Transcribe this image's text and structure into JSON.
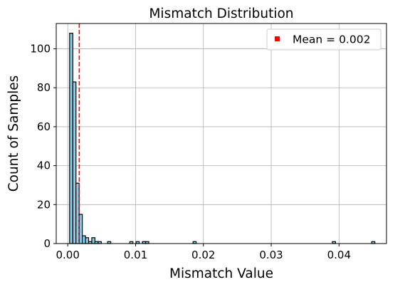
{
  "chart_data": {
    "type": "bar",
    "title": "Mismatch Distribution",
    "xlabel": "Mismatch Value",
    "ylabel": "Count of Samples",
    "xlim": [
      -0.0017,
      0.047
    ],
    "ylim": [
      0,
      113
    ],
    "x_ticks": [
      0.0,
      0.01,
      0.02,
      0.03,
      0.04
    ],
    "x_tick_labels": [
      "0.00",
      "0.01",
      "0.02",
      "0.03",
      "0.04"
    ],
    "y_ticks": [
      0,
      20,
      40,
      60,
      80,
      100
    ],
    "y_tick_labels": [
      "0",
      "20",
      "40",
      "60",
      "80",
      "100"
    ],
    "grid": true,
    "bar_color": "#87ceeb",
    "bar_edge_color": "#000000",
    "bin_width": 0.000467,
    "bins": [
      {
        "x": 0.00051,
        "count": 108
      },
      {
        "x": 0.00098,
        "count": 83
      },
      {
        "x": 0.00144,
        "count": 31
      },
      {
        "x": 0.00191,
        "count": 15
      },
      {
        "x": 0.00238,
        "count": 4
      },
      {
        "x": 0.00284,
        "count": 3
      },
      {
        "x": 0.00331,
        "count": 1
      },
      {
        "x": 0.00378,
        "count": 3
      },
      {
        "x": 0.00424,
        "count": 1
      },
      {
        "x": 0.00471,
        "count": 1
      },
      {
        "x": 0.00611,
        "count": 1
      },
      {
        "x": 0.00938,
        "count": 1
      },
      {
        "x": 0.01031,
        "count": 1
      },
      {
        "x": 0.01124,
        "count": 1
      },
      {
        "x": 0.01171,
        "count": 1
      },
      {
        "x": 0.01871,
        "count": 1
      },
      {
        "x": 0.03925,
        "count": 1
      },
      {
        "x": 0.04505,
        "count": 1
      }
    ],
    "mean_line": {
      "value": 0.0017,
      "color": "#ff0000",
      "style": "dashed"
    },
    "legend": {
      "position": "top-right",
      "entries": [
        {
          "label": "Mean = 0.002",
          "color": "#ff0000"
        }
      ]
    }
  }
}
